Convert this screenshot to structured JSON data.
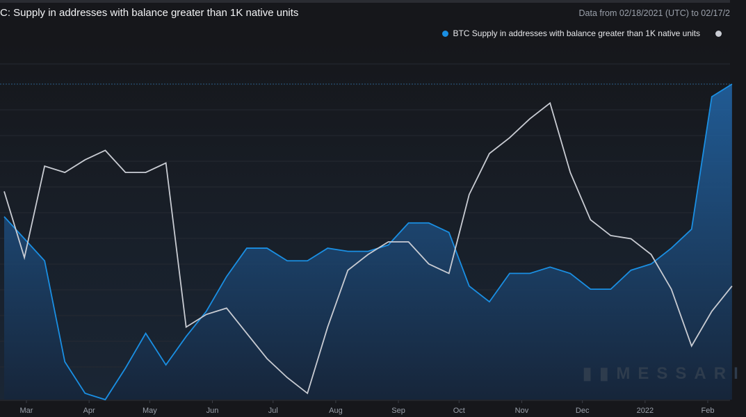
{
  "header": {
    "title": "C: Supply in addresses with balance greater than 1K native units",
    "date_range": "Data from 02/18/2021 (UTC) to 02/17/2"
  },
  "watermark": "MESSARI",
  "chart_data": {
    "type": "area",
    "title": "C: Supply in addresses with balance greater than 1K native units",
    "x_ticks": [
      "Mar",
      "Apr",
      "May",
      "Jun",
      "Jul",
      "Aug",
      "Sep",
      "Oct",
      "Nov",
      "Dec",
      "2022",
      "Feb"
    ],
    "x_tick_dates": [
      "2021-03-01",
      "2021-04-01",
      "2021-05-01",
      "2021-06-01",
      "2021-07-01",
      "2021-08-01",
      "2021-09-01",
      "2021-10-01",
      "2021-11-01",
      "2021-12-01",
      "2022-01-01",
      "2022-02-01"
    ],
    "xlim": [
      "2021-02-18",
      "2022-02-17"
    ],
    "ylim": [
      0,
      100
    ],
    "grid": true,
    "legend_placement": "top-right",
    "x": [
      "2021-02-18",
      "2021-02-28",
      "2021-03-10",
      "2021-03-20",
      "2021-03-30",
      "2021-04-09",
      "2021-04-19",
      "2021-04-29",
      "2021-05-09",
      "2021-05-19",
      "2021-05-29",
      "2021-06-08",
      "2021-06-18",
      "2021-06-28",
      "2021-07-08",
      "2021-07-18",
      "2021-07-28",
      "2021-08-07",
      "2021-08-17",
      "2021-08-27",
      "2021-09-06",
      "2021-09-16",
      "2021-09-26",
      "2021-10-06",
      "2021-10-16",
      "2021-10-26",
      "2021-11-05",
      "2021-11-15",
      "2021-11-25",
      "2021-12-05",
      "2021-12-15",
      "2021-12-25",
      "2022-01-04",
      "2022-01-14",
      "2022-01-24",
      "2022-02-03",
      "2022-02-13"
    ],
    "series": [
      {
        "name": "BTC Supply in addresses with balance greater than 1K native units",
        "color": "#1a8fe3",
        "values": [
          58,
          51,
          44,
          12,
          2,
          0,
          10,
          21,
          11,
          20,
          28,
          39,
          48,
          48,
          44,
          44,
          48,
          47,
          47,
          49,
          56,
          56,
          53,
          36,
          31,
          40,
          40,
          42,
          40,
          35,
          35,
          41,
          43,
          48,
          54,
          96,
          100
        ]
      },
      {
        "name": "",
        "color": "#c9ccd3",
        "values": [
          66,
          45,
          74,
          72,
          76,
          79,
          72,
          72,
          75,
          23,
          27,
          29,
          21,
          13,
          7,
          2,
          23,
          41,
          46,
          50,
          50,
          43,
          40,
          65,
          78,
          83,
          89,
          94,
          72,
          57,
          52,
          51,
          46,
          35,
          17,
          28,
          36
        ]
      }
    ]
  }
}
